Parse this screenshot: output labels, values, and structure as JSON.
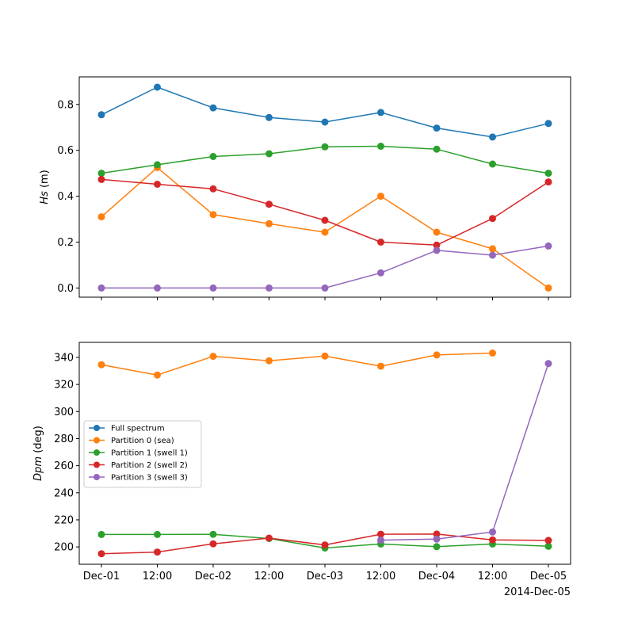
{
  "colors": {
    "full": "#1f77b4",
    "p0": "#ff7f0e",
    "p1": "#2ca02c",
    "p2": "#d62728",
    "p3": "#9467bd"
  },
  "chart_data": [
    {
      "type": "line",
      "ylabel_italic": "Hs",
      "ylabel_unit": " (m)",
      "x": [
        "Dec-01 00:00",
        "Dec-01 12:00",
        "Dec-02 00:00",
        "Dec-02 12:00",
        "Dec-03 00:00",
        "Dec-03 12:00",
        "Dec-04 00:00",
        "Dec-04 12:00",
        "Dec-05 00:00"
      ],
      "ylim": [
        -0.04,
        0.92
      ],
      "yticks": [
        0.0,
        0.2,
        0.4,
        0.6,
        0.8
      ],
      "ytick_labels": [
        "0.0",
        "0.2",
        "0.4",
        "0.6",
        "0.8"
      ],
      "series": [
        {
          "name": "Full spectrum",
          "color_key": "full",
          "values": [
            0.755,
            0.875,
            0.785,
            0.743,
            0.723,
            0.765,
            0.697,
            0.658,
            0.717
          ]
        },
        {
          "name": "Partition 0 (sea)",
          "color_key": "p0",
          "values": [
            0.31,
            0.525,
            0.32,
            0.28,
            0.243,
            0.4,
            0.243,
            0.171,
            0.0
          ]
        },
        {
          "name": "Partition 1 (swell 1)",
          "color_key": "p1",
          "values": [
            0.5,
            0.537,
            0.573,
            0.585,
            0.615,
            0.618,
            0.605,
            0.54,
            0.5
          ]
        },
        {
          "name": "Partition 2 (swell 2)",
          "color_key": "p2",
          "values": [
            0.473,
            0.452,
            0.432,
            0.365,
            0.295,
            0.2,
            0.187,
            0.303,
            0.462
          ]
        },
        {
          "name": "Partition 3 (swell 3)",
          "color_key": "p3",
          "values": [
            0.0,
            0.0,
            0.0,
            0.0,
            0.0,
            0.066,
            0.164,
            0.143,
            0.183
          ]
        }
      ]
    },
    {
      "type": "line",
      "ylabel_italic": "Dpm",
      "ylabel_unit": " (deg)",
      "x": [
        "Dec-01 00:00",
        "Dec-01 12:00",
        "Dec-02 00:00",
        "Dec-02 12:00",
        "Dec-03 00:00",
        "Dec-03 12:00",
        "Dec-04 00:00",
        "Dec-04 12:00",
        "Dec-05 00:00"
      ],
      "ylim": [
        187.2,
        351.1
      ],
      "yticks": [
        200,
        220,
        240,
        260,
        280,
        300,
        320,
        340
      ],
      "ytick_labels": [
        "200",
        "220",
        "240",
        "260",
        "280",
        "300",
        "320",
        "340"
      ],
      "xtick_labels": [
        "Dec-01",
        "12:00",
        "Dec-02",
        "12:00",
        "Dec-03",
        "12:00",
        "Dec-04",
        "12:00",
        "Dec-05"
      ],
      "x_offset_label": "2014-Dec-05",
      "legend_position": "center-left",
      "series": [
        {
          "name": "Full spectrum",
          "color_key": "full",
          "values": [
            null,
            null,
            null,
            null,
            null,
            null,
            null,
            null,
            null
          ]
        },
        {
          "name": "Partition 0 (sea)",
          "color_key": "p0",
          "values": [
            334.6,
            327.0,
            340.8,
            337.5,
            341.0,
            333.5,
            341.8,
            343.2,
            null
          ]
        },
        {
          "name": "Partition 1 (swell 1)",
          "color_key": "p1",
          "values": [
            209.2,
            209.2,
            209.3,
            206.2,
            199.2,
            202.2,
            200.2,
            202.2,
            200.5
          ]
        },
        {
          "name": "Partition 2 (swell 2)",
          "color_key": "p2",
          "values": [
            195.0,
            196.2,
            202.3,
            206.5,
            201.5,
            209.4,
            209.5,
            205.2,
            204.8
          ]
        },
        {
          "name": "Partition 3 (swell 3)",
          "color_key": "p3",
          "values": [
            null,
            null,
            null,
            null,
            null,
            205.0,
            205.8,
            211.0,
            335.5
          ]
        }
      ]
    }
  ]
}
